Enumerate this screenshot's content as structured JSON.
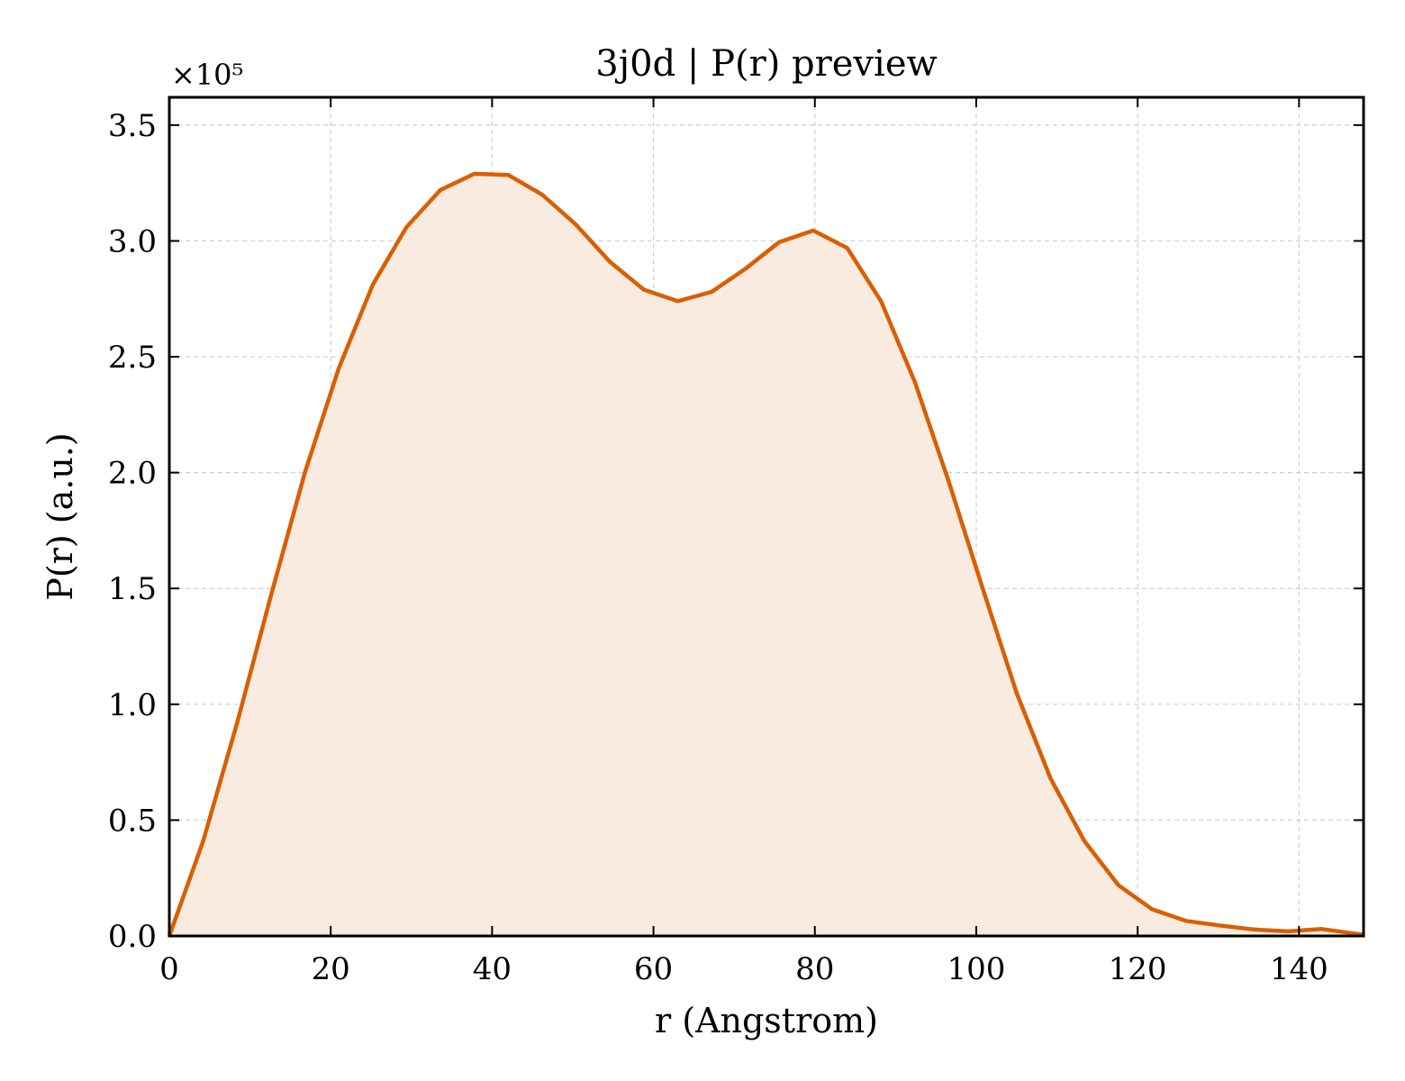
{
  "chart_data": {
    "type": "area",
    "title": "3j0d | P(r) preview",
    "xlabel": "r (Angstrom)",
    "ylabel": "P(r) (a.u.)",
    "y_multiplier_label": "×10⁵",
    "y_multiplier": 100000,
    "xlim": [
      0,
      148
    ],
    "ylim": [
      0,
      3.62
    ],
    "x_ticks": [
      0,
      20,
      40,
      60,
      80,
      100,
      120,
      140
    ],
    "x_tick_labels": [
      "0",
      "20",
      "40",
      "60",
      "80",
      "100",
      "120",
      "140"
    ],
    "y_ticks": [
      0.0,
      0.5,
      1.0,
      1.5,
      2.0,
      2.5,
      3.0,
      3.5
    ],
    "y_tick_labels": [
      "0.0",
      "0.5",
      "1.0",
      "1.5",
      "2.0",
      "2.5",
      "3.0",
      "3.5"
    ],
    "grid": true,
    "colors": {
      "line": "#d95f02",
      "fill": "#f9ebe0"
    },
    "series": [
      {
        "x": [
          0,
          4.2,
          8.4,
          12.6,
          16.8,
          21.0,
          25.2,
          29.4,
          33.6,
          37.8,
          42.0,
          46.2,
          50.4,
          54.6,
          58.8,
          63.0,
          67.2,
          71.4,
          75.6,
          79.8,
          84.0,
          88.2,
          92.4,
          96.6,
          100.8,
          105.0,
          109.2,
          113.4,
          117.6,
          121.8,
          126.0,
          130.2,
          134.4,
          138.6,
          142.8,
          148.0
        ],
        "y": [
          0.0,
          0.41,
          0.92,
          1.47,
          2.0,
          2.45,
          2.81,
          3.06,
          3.22,
          3.29,
          3.285,
          3.2,
          3.07,
          2.91,
          2.79,
          2.74,
          2.78,
          2.88,
          2.995,
          3.045,
          2.97,
          2.74,
          2.39,
          1.96,
          1.5,
          1.05,
          0.68,
          0.41,
          0.22,
          0.115,
          0.065,
          0.045,
          0.028,
          0.02,
          0.03,
          0.005
        ]
      }
    ]
  }
}
